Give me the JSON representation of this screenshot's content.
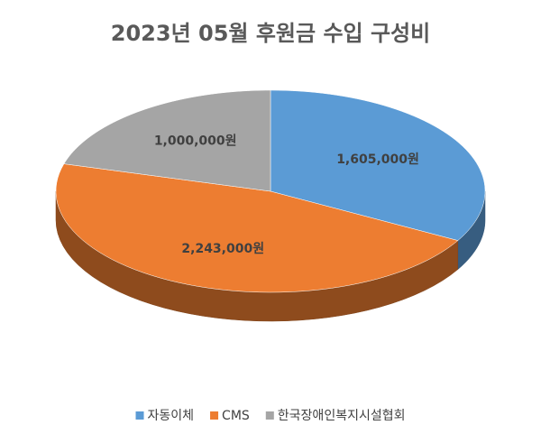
{
  "chart_data": {
    "type": "pie",
    "title": "2023년 05월 후원금 수입 구성비",
    "categories": [
      "자동이체",
      "CMS",
      "한국장애인복지시설협회"
    ],
    "values": [
      1605000,
      2243000,
      1000000
    ],
    "value_labels": [
      "1,605,000원",
      "2,243,000원",
      "1,000,000원"
    ],
    "colors": [
      "#5b9bd5",
      "#ed7d31",
      "#a5a5a5"
    ],
    "legend": "bottom"
  }
}
